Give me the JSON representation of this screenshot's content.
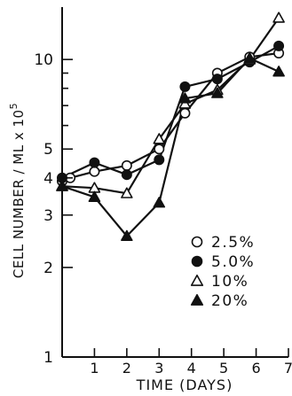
{
  "chart_data": {
    "type": "line",
    "title": "",
    "xlabel": "TIME (DAYS)",
    "ylabel_parts": {
      "main": "CELL NUMBER / ML x 10",
      "exponent": "5"
    },
    "x_scale": "linear",
    "y_scale": "log",
    "xlim": [
      0,
      7
    ],
    "ylim": [
      1,
      15
    ],
    "x_ticks": [
      1,
      2,
      3,
      4,
      5,
      6,
      7
    ],
    "x_tick_labels": [
      "1",
      "2",
      "3",
      "4",
      "5",
      "6",
      "7"
    ],
    "y_major_ticks": [
      1,
      2,
      3,
      4,
      5,
      10
    ],
    "y_major_labels": [
      "1",
      "2",
      "3",
      "4",
      "5",
      "10"
    ],
    "y_minor_ticks": [
      6,
      7,
      8,
      9
    ],
    "grid": false,
    "legend_position": "center-right",
    "series": [
      {
        "name": "2.5%",
        "marker": "circle-open",
        "x": [
          0,
          0.25,
          1,
          2,
          3,
          3.8,
          4.8,
          5.8,
          6.7
        ],
        "y": [
          3.9,
          4.0,
          4.2,
          4.4,
          5.0,
          6.6,
          9.0,
          10.2,
          10.5
        ]
      },
      {
        "name": "5.0%",
        "marker": "circle-filled",
        "x": [
          0,
          1,
          2,
          3,
          3.8,
          4.8,
          5.8,
          6.7
        ],
        "y": [
          4.0,
          4.5,
          4.1,
          4.6,
          8.1,
          8.6,
          9.8,
          11.1
        ]
      },
      {
        "name": "10%",
        "marker": "triangle-open",
        "x": [
          0,
          1,
          2,
          3,
          3.8,
          4.8,
          5.8,
          6.7
        ],
        "y": [
          3.75,
          3.7,
          3.55,
          5.4,
          7.1,
          7.9,
          10.0,
          13.8
        ]
      },
      {
        "name": "20%",
        "marker": "triangle-filled",
        "x": [
          0,
          1,
          2,
          3,
          3.8,
          4.8,
          5.8,
          6.7
        ],
        "y": [
          3.75,
          3.45,
          2.55,
          3.3,
          7.4,
          7.7,
          10.1,
          9.1
        ]
      }
    ]
  }
}
